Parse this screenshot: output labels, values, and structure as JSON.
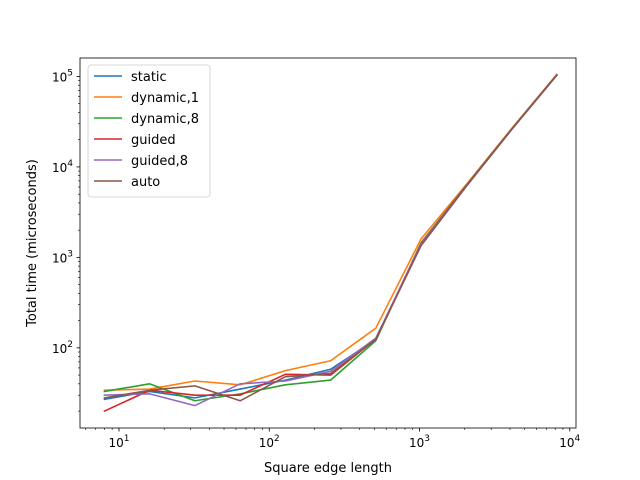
{
  "chart_data": {
    "type": "line",
    "title": "",
    "xlabel": "Square edge length",
    "ylabel": "Total time (microseconds)",
    "xscale": "log",
    "yscale": "log",
    "xlim": [
      5.5,
      11000
    ],
    "ylim": [
      13,
      160000
    ],
    "grid": false,
    "legend_position": "top-left",
    "x": [
      8,
      16,
      32,
      64,
      128,
      256,
      512,
      1024,
      2048,
      4096,
      8192
    ],
    "series": [
      {
        "name": "static",
        "color": "#1f77b4",
        "values": [
          27,
          33,
          28,
          35,
          44,
          58,
          124,
          1400,
          6200,
          26000,
          104000
        ]
      },
      {
        "name": "dynamic,1",
        "color": "#ff7f0e",
        "values": [
          34,
          35,
          43,
          39,
          56,
          72,
          165,
          1600,
          6400,
          26500,
          105000
        ]
      },
      {
        "name": "dynamic,8",
        "color": "#2ca02c",
        "values": [
          33,
          40,
          26,
          31,
          39,
          44,
          120,
          1450,
          6250,
          26200,
          104500
        ]
      },
      {
        "name": "guided",
        "color": "#d62728",
        "values": [
          20,
          34,
          30,
          30,
          51,
          50,
          125,
          1420,
          6200,
          26000,
          104000
        ]
      },
      {
        "name": "guided,8",
        "color": "#9467bd",
        "values": [
          30,
          31,
          23,
          40,
          43,
          55,
          128,
          1400,
          6150,
          25900,
          103500
        ]
      },
      {
        "name": "auto",
        "color": "#8c564b",
        "values": [
          28,
          34,
          38,
          26,
          48,
          52,
          124,
          1350,
          6100,
          25800,
          103000
        ]
      }
    ],
    "x_ticks": [
      {
        "value": 10,
        "base": "10",
        "exp": "1"
      },
      {
        "value": 100,
        "base": "10",
        "exp": "2"
      },
      {
        "value": 1000,
        "base": "10",
        "exp": "3"
      },
      {
        "value": 10000,
        "base": "10",
        "exp": "4"
      }
    ],
    "y_ticks": [
      {
        "value": 100,
        "base": "10",
        "exp": "2"
      },
      {
        "value": 1000,
        "base": "10",
        "exp": "3"
      },
      {
        "value": 10000,
        "base": "10",
        "exp": "4"
      },
      {
        "value": 100000,
        "base": "10",
        "exp": "5"
      }
    ]
  }
}
